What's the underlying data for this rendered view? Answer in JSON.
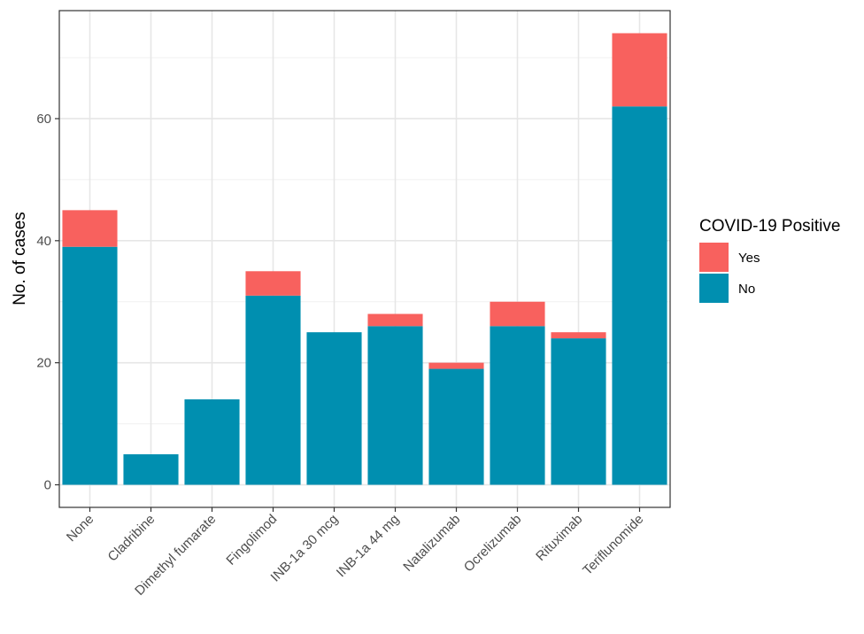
{
  "chart_data": {
    "type": "bar",
    "stacked": true,
    "categories": [
      "None",
      "Cladribine",
      "Dimethyl fumarate",
      "Fingolimod",
      "INB-1a 30 mcg",
      "INB-1a 44 mg",
      "Natalizumab",
      "Ocrelizumab",
      "Rituximab",
      "Teriflunomide"
    ],
    "series": [
      {
        "name": "No",
        "color": "#008FB0",
        "values": [
          39,
          5,
          14,
          31,
          25,
          26,
          19,
          26,
          24,
          62
        ]
      },
      {
        "name": "Yes",
        "color": "#F8615E",
        "values": [
          6,
          0,
          0,
          4,
          0,
          2,
          1,
          4,
          1,
          12
        ]
      }
    ],
    "ylabel": "No. of cases",
    "xlabel": "",
    "ylim": [
      -3.7,
      77.7
    ],
    "yticks": [
      0,
      20,
      40,
      60
    ],
    "grid": true,
    "legend": {
      "title": "COVID-19 Positive",
      "position": "right",
      "entries": [
        {
          "label": "Yes",
          "color": "#F8615E"
        },
        {
          "label": "No",
          "color": "#008FB0"
        }
      ]
    }
  }
}
